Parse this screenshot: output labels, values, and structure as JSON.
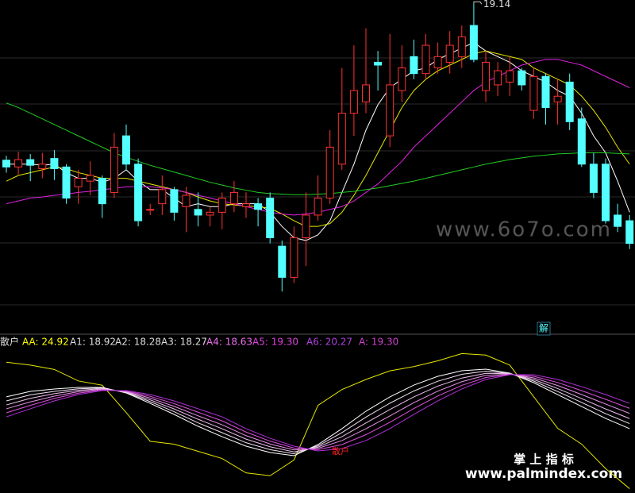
{
  "chart_data": [
    {
      "type": "candlestick",
      "ylim": [
        13.8,
        19.2
      ],
      "up_color": "#ff3232",
      "down_color": "#54ffff",
      "annotations": [
        "19.14",
        "解"
      ],
      "open": [
        16.37,
        16.25,
        16.38,
        16.22,
        16.4,
        16.25,
        15.9,
        16.0,
        16.05,
        15.8,
        16.8,
        16.3,
        15.5,
        15.6,
        15.85,
        15.55,
        15.5,
        15.4,
        15.45,
        15.6,
        15.55,
        15.6,
        15.7,
        14.85,
        14.3,
        15.0,
        15.4,
        15.7,
        16.3,
        17.2,
        17.4,
        18.1,
        16.8,
        17.6,
        18.2,
        17.9,
        18.0,
        18.1,
        18.2,
        18.75,
        17.6,
        17.7,
        17.75,
        17.95,
        17.25,
        17.85,
        17.4,
        17.75,
        17.1,
        16.3,
        16.3,
        15.4,
        15.3
      ],
      "high": [
        16.45,
        16.52,
        16.48,
        16.5,
        16.55,
        16.3,
        16.2,
        16.35,
        16.1,
        16.85,
        17.0,
        16.4,
        15.6,
        16.1,
        15.9,
        15.9,
        15.8,
        15.55,
        15.8,
        16.0,
        15.8,
        15.7,
        15.8,
        14.95,
        15.2,
        15.8,
        16.1,
        16.9,
        18.0,
        18.4,
        18.7,
        18.3,
        18.6,
        18.4,
        18.5,
        18.6,
        18.45,
        18.65,
        18.75,
        19.14,
        18.3,
        18.1,
        18.2,
        18.0,
        18.0,
        17.9,
        17.8,
        17.9,
        17.3,
        16.5,
        16.4,
        15.6,
        15.4
      ],
      "low": [
        16.15,
        16.12,
        16.0,
        16.05,
        16.02,
        15.6,
        15.6,
        15.75,
        15.35,
        15.7,
        16.2,
        15.2,
        15.4,
        15.4,
        15.3,
        15.1,
        15.2,
        15.2,
        15.15,
        15.45,
        15.35,
        15.2,
        14.9,
        14.05,
        14.2,
        14.5,
        15.3,
        15.6,
        16.2,
        16.8,
        17.2,
        17.6,
        16.6,
        17.4,
        17.8,
        17.8,
        17.9,
        17.9,
        18.0,
        18.1,
        17.4,
        17.5,
        17.5,
        17.6,
        17.1,
        17.0,
        17.0,
        16.9,
        16.25,
        15.7,
        15.25,
        15.1,
        14.8
      ],
      "close": [
        16.25,
        16.38,
        16.28,
        16.3,
        16.22,
        15.7,
        16.05,
        16.1,
        15.6,
        16.6,
        16.3,
        15.3,
        15.5,
        15.85,
        15.45,
        15.75,
        15.4,
        15.45,
        15.7,
        15.8,
        15.6,
        15.5,
        15.0,
        14.3,
        15.0,
        15.4,
        15.7,
        16.6,
        17.2,
        17.6,
        17.7,
        18.05,
        17.7,
        18.0,
        17.9,
        18.4,
        18.2,
        18.4,
        18.55,
        18.15,
        18.1,
        17.95,
        17.95,
        17.7,
        17.85,
        17.3,
        17.5,
        17.05,
        16.3,
        15.8,
        15.3,
        15.2,
        14.9
      ],
      "series": [
        {
          "color": "#ffffff",
          "values": [
            16.3,
            16.3,
            16.3,
            16.28,
            16.3,
            16.15,
            16.05,
            16.05,
            15.98,
            16.05,
            16.2,
            16.0,
            15.85,
            15.85,
            15.7,
            15.55,
            15.6,
            15.55,
            15.55,
            15.6,
            15.6,
            15.6,
            15.45,
            15.2,
            15.0,
            14.95,
            15.05,
            15.3,
            15.8,
            16.3,
            16.9,
            17.35,
            17.65,
            17.8,
            17.95,
            18.0,
            18.15,
            18.25,
            18.35,
            18.45,
            18.3,
            18.2,
            18.1,
            17.95,
            17.85,
            17.75,
            17.6,
            17.5,
            17.2,
            16.8,
            16.5,
            16.0,
            15.45
          ]
        },
        {
          "color": "#e6e600",
          "values": [
            16.0,
            16.1,
            16.15,
            16.2,
            16.25,
            16.22,
            16.15,
            16.1,
            16.05,
            16.05,
            16.05,
            16.0,
            15.95,
            15.9,
            15.85,
            15.8,
            15.72,
            15.65,
            15.6,
            15.58,
            15.56,
            15.55,
            15.52,
            15.42,
            15.3,
            15.2,
            15.2,
            15.25,
            15.45,
            15.75,
            16.1,
            16.5,
            16.9,
            17.3,
            17.6,
            17.8,
            17.95,
            18.05,
            18.15,
            18.25,
            18.3,
            18.25,
            18.2,
            18.15,
            18.0,
            17.9,
            17.8,
            17.7,
            17.5,
            17.25,
            16.95,
            16.6,
            16.3
          ]
        },
        {
          "color": "#e020e0",
          "values": [
            15.6,
            15.65,
            15.7,
            15.72,
            15.75,
            15.77,
            15.8,
            15.82,
            15.85,
            15.87,
            15.9,
            15.9,
            15.9,
            15.88,
            15.85,
            15.8,
            15.75,
            15.7,
            15.65,
            15.6,
            15.55,
            15.5,
            15.45,
            15.42,
            15.4,
            15.42,
            15.45,
            15.5,
            15.55,
            15.65,
            15.8,
            15.95,
            16.15,
            16.35,
            16.6,
            16.8,
            17.0,
            17.2,
            17.4,
            17.6,
            17.75,
            17.85,
            17.95,
            18.05,
            18.1,
            18.15,
            18.15,
            18.1,
            18.05,
            17.95,
            17.85,
            17.75,
            17.65
          ]
        },
        {
          "color": "#22cc22",
          "values": [
            17.38,
            17.3,
            17.2,
            17.1,
            17.0,
            16.9,
            16.8,
            16.7,
            16.6,
            16.5,
            16.42,
            16.35,
            16.28,
            16.22,
            16.16,
            16.1,
            16.04,
            15.98,
            15.93,
            15.88,
            15.84,
            15.8,
            15.78,
            15.77,
            15.76,
            15.76,
            15.77,
            15.78,
            15.8,
            15.82,
            15.85,
            15.88,
            15.92,
            15.96,
            16.0,
            16.05,
            16.1,
            16.15,
            16.2,
            16.25,
            16.3,
            16.34,
            16.38,
            16.41,
            16.44,
            16.46,
            16.48,
            16.49,
            16.5,
            16.5,
            16.5,
            16.49,
            16.48
          ]
        }
      ]
    },
    {
      "type": "line",
      "title": "散户",
      "annotations": [
        "散户"
      ],
      "xlim": [
        0,
        52
      ],
      "ylim": [
        0,
        100
      ],
      "legend": [
        {
          "text": "AA: 24.92",
          "color": "#ffff00"
        },
        {
          "text": "A1: 18.92",
          "color": "#dddddd"
        },
        {
          "text": "A2: 18.28",
          "color": "#dddddd"
        },
        {
          "text": "A3: 18.27",
          "color": "#dddddd"
        },
        {
          "text": "A4: 18.63",
          "color": "#f070f0"
        },
        {
          "text": "A5: 19.30",
          "color": "#e040e0"
        },
        {
          "text": "A6: 20.27",
          "color": "#b040e0"
        },
        {
          "text": "A: 19.30",
          "color": "#d040d0"
        }
      ],
      "x": [
        0,
        2,
        4,
        6,
        8,
        10,
        12,
        14,
        16,
        18,
        20,
        22,
        24,
        26,
        28,
        30,
        32,
        34,
        36,
        38,
        40,
        42,
        44,
        46,
        48,
        50,
        52
      ],
      "series": [
        {
          "color": "#e6e600",
          "values": [
            91,
            89,
            86,
            78,
            75,
            56,
            36,
            34,
            29,
            24,
            14,
            12,
            23,
            61,
            72,
            79,
            85,
            88,
            92,
            97,
            96,
            89,
            67,
            45,
            34,
            17,
            3
          ]
        },
        {
          "color": "#ffffff",
          "values": [
            66.9,
            70.7,
            72.4,
            73.5,
            73.5,
            69.6,
            62.4,
            54.7,
            46.4,
            39.2,
            32.6,
            28.2,
            26.0,
            33.7,
            44.8,
            56.9,
            66.9,
            75.1,
            81.2,
            85.1,
            86.2,
            83.4,
            76.8,
            68.5,
            60.2,
            51.9,
            44.8
          ]
        },
        {
          "color": "#f4e0f4",
          "values": [
            64.1,
            68.3,
            70.7,
            72.5,
            73.1,
            69.9,
            63.6,
            56.6,
            48.8,
            42.0,
            35.0,
            30.2,
            27.3,
            32.8,
            42.0,
            52.8,
            62.5,
            71.0,
            77.8,
            82.6,
            84.8,
            83.2,
            77.9,
            70.6,
            63.0,
            55.2,
            48.3
          ]
        },
        {
          "color": "#eec0ee",
          "values": [
            61.3,
            65.9,
            69.1,
            71.5,
            72.6,
            70.3,
            64.8,
            58.5,
            51.3,
            44.7,
            37.5,
            32.2,
            28.6,
            31.9,
            39.2,
            48.7,
            58.1,
            66.9,
            74.4,
            80.0,
            83.3,
            83.0,
            79.0,
            72.7,
            65.7,
            58.5,
            51.8
          ]
        },
        {
          "color": "#e890e8",
          "values": [
            58.6,
            63.4,
            67.4,
            70.5,
            72.2,
            70.6,
            66.1,
            60.3,
            53.7,
            47.5,
            39.9,
            34.1,
            30.0,
            31.1,
            36.5,
            44.7,
            53.6,
            62.9,
            70.9,
            77.5,
            81.9,
            82.7,
            80.1,
            74.8,
            68.5,
            61.9,
            55.4
          ]
        },
        {
          "color": "#e050e0",
          "values": [
            55.8,
            61.0,
            65.8,
            69.5,
            71.7,
            71.0,
            67.3,
            62.2,
            56.2,
            50.2,
            42.4,
            36.1,
            31.3,
            30.2,
            33.7,
            40.6,
            49.2,
            58.8,
            67.5,
            74.9,
            80.4,
            82.5,
            81.2,
            76.9,
            71.2,
            65.2,
            58.9
          ]
        },
        {
          "color": "#b030d8",
          "values": [
            53.0,
            58.6,
            64.1,
            68.5,
            71.3,
            71.3,
            68.5,
            64.1,
            58.6,
            53.0,
            44.8,
            38.1,
            32.6,
            29.3,
            30.9,
            36.5,
            44.8,
            54.7,
            64.1,
            72.4,
            79.0,
            82.3,
            82.3,
            79.0,
            74.0,
            68.5,
            62.4
          ]
        }
      ]
    }
  ],
  "watermarks": [
    "www.6o7o.com",
    "掌 上 指 标",
    "www.palmindex.com"
  ]
}
